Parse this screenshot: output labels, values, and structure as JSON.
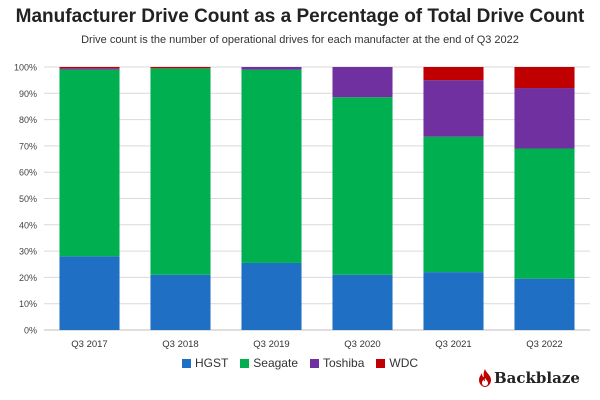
{
  "chart_data": {
    "type": "bar",
    "stacked": true,
    "title": "Manufacturer Drive Count as a Percentage of Total Drive Count",
    "subtitle": "Drive count is the number of operational drives for each manufacter at the end of Q3 2022",
    "categories": [
      "Q3 2017",
      "Q3 2018",
      "Q3 2019",
      "Q3 2020",
      "Q3 2021",
      "Q3 2022"
    ],
    "series": [
      {
        "name": "HGST",
        "color": "#1f6fc5",
        "values": [
          28,
          21,
          25.5,
          21,
          22,
          19.5
        ]
      },
      {
        "name": "Seagate",
        "color": "#00b050",
        "values": [
          71,
          78.5,
          73.5,
          67.5,
          51.5,
          49.5
        ]
      },
      {
        "name": "Toshiba",
        "color": "#7030a0",
        "values": [
          0.5,
          0,
          1,
          11.5,
          21.5,
          23
        ]
      },
      {
        "name": "WDC",
        "color": "#c00000",
        "values": [
          0.5,
          0.5,
          0,
          0,
          5,
          8
        ]
      }
    ],
    "ylim": [
      0,
      100
    ],
    "yticks": [
      "0%",
      "10%",
      "20%",
      "30%",
      "40%",
      "50%",
      "60%",
      "70%",
      "80%",
      "90%",
      "100%"
    ],
    "grid": true,
    "legend_position": "bottom"
  },
  "brand": {
    "name": "Backblaze",
    "icon": "flame-icon",
    "color": "#c00000"
  }
}
